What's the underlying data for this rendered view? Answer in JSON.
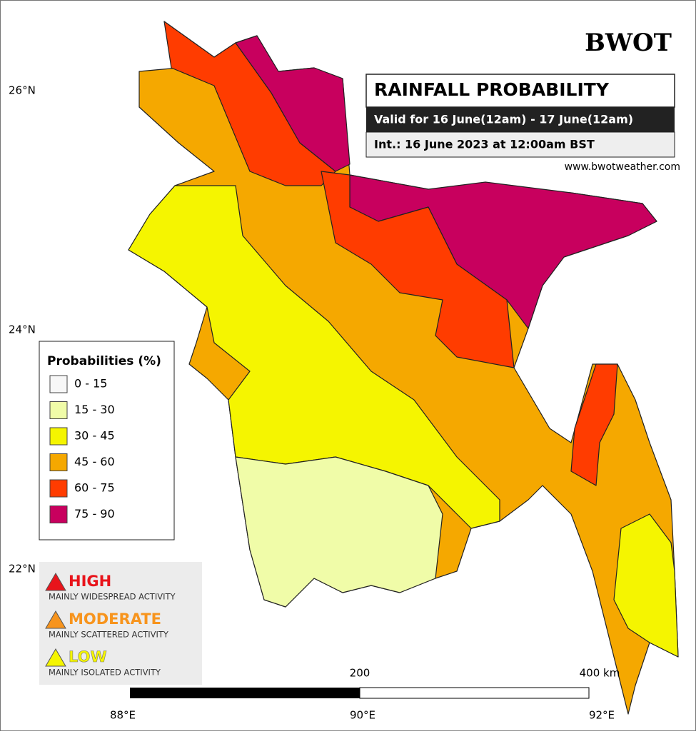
{
  "header": {
    "logo": "BWOT",
    "title": "RAINFALL PROBABILITY",
    "valid": "Valid for 16 June(12am) - 17 June(12am)",
    "init": "Int.: 16 June 2023 at 12:00am BST",
    "website": "www.bwotweather.com"
  },
  "legend": {
    "title": "Probabilities (%)",
    "items": [
      {
        "label": "0 - 15",
        "color": "#f7f7f7"
      },
      {
        "label": "15 - 30",
        "color": "#f0fca8"
      },
      {
        "label": "30 - 45",
        "color": "#f5f500"
      },
      {
        "label": "45 - 60",
        "color": "#f5a800"
      },
      {
        "label": "60 - 75",
        "color": "#ff3c00"
      },
      {
        "label": "75 - 90",
        "color": "#c8005e"
      }
    ]
  },
  "risk": [
    {
      "level": "HIGH",
      "description": "MAINLY WIDESPREAD ACTIVITY",
      "color": "#e8141b"
    },
    {
      "level": "MODERATE",
      "description": "MAINLY SCATTERED ACTIVITY",
      "color": "#f7941d"
    },
    {
      "level": "LOW",
      "description": "MAINLY ISOLATED ACTIVITY",
      "color": "#f5f500"
    }
  ],
  "latitude_labels": [
    "26°N",
    "24°N",
    "22°N"
  ],
  "longitude_labels": [
    "88°E",
    "90°E",
    "92°E"
  ],
  "scale_bar": {
    "mid": "200",
    "end": "400 km"
  }
}
